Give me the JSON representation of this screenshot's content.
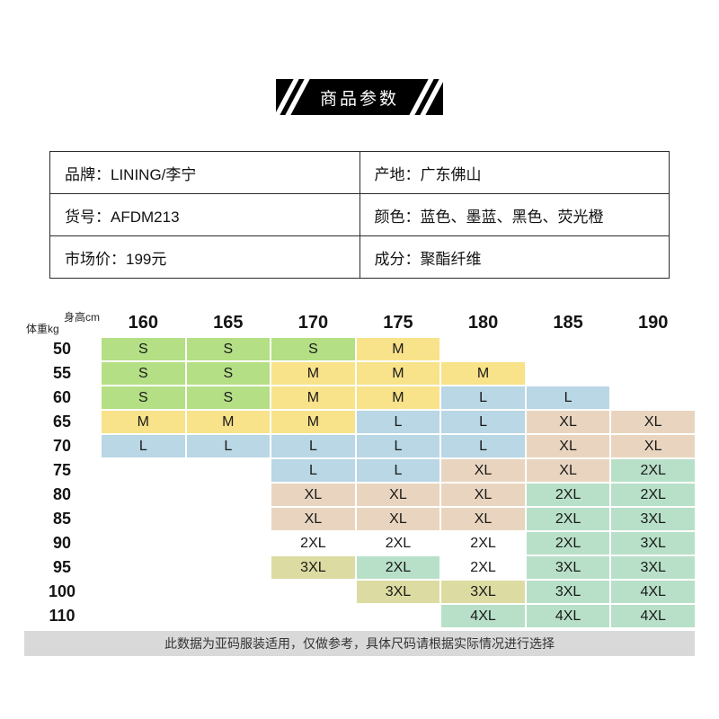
{
  "banner": {
    "title": "商品参数"
  },
  "info_table": {
    "rows": [
      {
        "left": "品牌：LINING/李宁",
        "right": "产地：广东佛山"
      },
      {
        "left": "货号：AFDM213",
        "right": "颜色：蓝色、墨蓝、黑色、荧光橙"
      },
      {
        "left": "市场价：199元",
        "right": "成分：聚酯纤维"
      }
    ]
  },
  "size_chart": {
    "corner": {
      "top": "身高cm",
      "bottom": "体重kg"
    },
    "heights": [
      "160",
      "165",
      "170",
      "175",
      "180",
      "185",
      "190"
    ],
    "colors": {
      "green": "#b4df85",
      "yellow": "#f8e28a",
      "blue": "#b9d7e5",
      "tan": "#e9d5bf",
      "teal": "#b8e0c9",
      "khaki": "#dcdca2",
      "none": "transparent"
    },
    "rows": [
      {
        "weight": "50",
        "cells": [
          {
            "t": "S",
            "c": "green"
          },
          {
            "t": "S",
            "c": "green"
          },
          {
            "t": "S",
            "c": "green"
          },
          {
            "t": "M",
            "c": "yellow"
          },
          {
            "t": "",
            "c": "none"
          },
          {
            "t": "",
            "c": "none"
          },
          {
            "t": "",
            "c": "none"
          }
        ]
      },
      {
        "weight": "55",
        "cells": [
          {
            "t": "S",
            "c": "green"
          },
          {
            "t": "S",
            "c": "green"
          },
          {
            "t": "M",
            "c": "yellow"
          },
          {
            "t": "M",
            "c": "yellow"
          },
          {
            "t": "M",
            "c": "yellow"
          },
          {
            "t": "",
            "c": "none"
          },
          {
            "t": "",
            "c": "none"
          }
        ]
      },
      {
        "weight": "60",
        "cells": [
          {
            "t": "S",
            "c": "green"
          },
          {
            "t": "S",
            "c": "green"
          },
          {
            "t": "M",
            "c": "yellow"
          },
          {
            "t": "M",
            "c": "yellow"
          },
          {
            "t": "L",
            "c": "blue"
          },
          {
            "t": "L",
            "c": "blue"
          },
          {
            "t": "",
            "c": "none"
          }
        ]
      },
      {
        "weight": "65",
        "cells": [
          {
            "t": "M",
            "c": "yellow"
          },
          {
            "t": "M",
            "c": "yellow"
          },
          {
            "t": "M",
            "c": "yellow"
          },
          {
            "t": "L",
            "c": "blue"
          },
          {
            "t": "L",
            "c": "blue"
          },
          {
            "t": "XL",
            "c": "tan"
          },
          {
            "t": "XL",
            "c": "tan"
          }
        ]
      },
      {
        "weight": "70",
        "cells": [
          {
            "t": "L",
            "c": "blue"
          },
          {
            "t": "L",
            "c": "blue"
          },
          {
            "t": "L",
            "c": "blue"
          },
          {
            "t": "L",
            "c": "blue"
          },
          {
            "t": "L",
            "c": "blue"
          },
          {
            "t": "XL",
            "c": "tan"
          },
          {
            "t": "XL",
            "c": "tan"
          }
        ]
      },
      {
        "weight": "75",
        "cells": [
          {
            "t": "",
            "c": "none"
          },
          {
            "t": "",
            "c": "none"
          },
          {
            "t": "L",
            "c": "blue"
          },
          {
            "t": "L",
            "c": "blue"
          },
          {
            "t": "XL",
            "c": "tan"
          },
          {
            "t": "XL",
            "c": "tan"
          },
          {
            "t": "2XL",
            "c": "teal"
          }
        ]
      },
      {
        "weight": "80",
        "cells": [
          {
            "t": "",
            "c": "none"
          },
          {
            "t": "",
            "c": "none"
          },
          {
            "t": "XL",
            "c": "tan"
          },
          {
            "t": "XL",
            "c": "tan"
          },
          {
            "t": "XL",
            "c": "tan"
          },
          {
            "t": "2XL",
            "c": "teal"
          },
          {
            "t": "2XL",
            "c": "teal"
          }
        ]
      },
      {
        "weight": "85",
        "cells": [
          {
            "t": "",
            "c": "none"
          },
          {
            "t": "",
            "c": "none"
          },
          {
            "t": "XL",
            "c": "tan"
          },
          {
            "t": "XL",
            "c": "tan"
          },
          {
            "t": "XL",
            "c": "tan"
          },
          {
            "t": "2XL",
            "c": "teal"
          },
          {
            "t": "3XL",
            "c": "teal"
          }
        ]
      },
      {
        "weight": "90",
        "cells": [
          {
            "t": "",
            "c": "none"
          },
          {
            "t": "",
            "c": "none"
          },
          {
            "t": "2XL",
            "c": "none"
          },
          {
            "t": "2XL",
            "c": "none"
          },
          {
            "t": "2XL",
            "c": "none"
          },
          {
            "t": "2XL",
            "c": "teal"
          },
          {
            "t": "3XL",
            "c": "teal"
          }
        ]
      },
      {
        "weight": "95",
        "cells": [
          {
            "t": "",
            "c": "none"
          },
          {
            "t": "",
            "c": "none"
          },
          {
            "t": "3XL",
            "c": "khaki"
          },
          {
            "t": "2XL",
            "c": "teal"
          },
          {
            "t": "2XL",
            "c": "none"
          },
          {
            "t": "3XL",
            "c": "teal"
          },
          {
            "t": "3XL",
            "c": "teal"
          }
        ]
      },
      {
        "weight": "100",
        "cells": [
          {
            "t": "",
            "c": "none"
          },
          {
            "t": "",
            "c": "none"
          },
          {
            "t": "",
            "c": "none"
          },
          {
            "t": "3XL",
            "c": "khaki"
          },
          {
            "t": "3XL",
            "c": "khaki"
          },
          {
            "t": "3XL",
            "c": "teal"
          },
          {
            "t": "4XL",
            "c": "teal"
          }
        ]
      },
      {
        "weight": "110",
        "cells": [
          {
            "t": "",
            "c": "none"
          },
          {
            "t": "",
            "c": "none"
          },
          {
            "t": "",
            "c": "none"
          },
          {
            "t": "",
            "c": "none"
          },
          {
            "t": "4XL",
            "c": "teal"
          },
          {
            "t": "4XL",
            "c": "teal"
          },
          {
            "t": "4XL",
            "c": "teal"
          }
        ]
      }
    ],
    "note": "此数据为亚码服装适用，仅做参考，具体尺码请根据实际情况进行选择"
  }
}
